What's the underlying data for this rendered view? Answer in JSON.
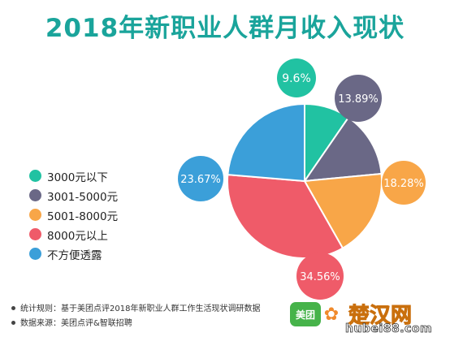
{
  "title": "2018年新职业人群月收入现状",
  "chart_data": {
    "type": "pie",
    "title": "2018年新职业人群月收入现状",
    "legend_position": "left",
    "series": [
      {
        "label": "3000元以下",
        "value": 9.6,
        "display": "9.6%",
        "color": "#21c2a2"
      },
      {
        "label": "3001-5000元",
        "value": 13.89,
        "display": "13.89%",
        "color": "#6a6886"
      },
      {
        "label": "5001-8000元",
        "value": 18.28,
        "display": "18.28%",
        "color": "#f8a648"
      },
      {
        "label": "8000元以上",
        "value": 34.56,
        "display": "34.56%",
        "color": "#ef5b69"
      },
      {
        "label": "不方便透露",
        "value": 23.67,
        "display": "23.67%",
        "color": "#3b9fd9"
      }
    ]
  },
  "footnotes": [
    "统计规则：基于美团点评2018年新职业人群工作生活现状调研数据",
    "数据来源：美团点评&智联招聘"
  ],
  "logos": {
    "meituan": "美团",
    "watermark_title": "楚汉网",
    "watermark_url": "hubei88.com"
  }
}
